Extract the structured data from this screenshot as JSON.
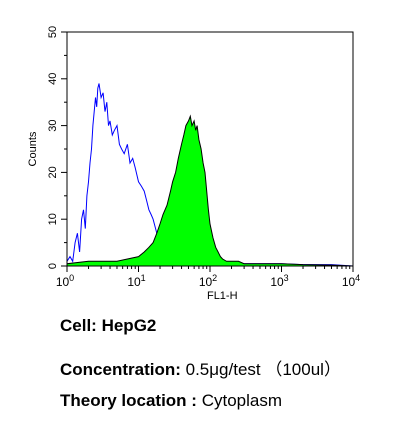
{
  "chart_data": {
    "type": "area",
    "xlabel": "FL1-H",
    "ylabel": "Counts",
    "xscale": "log",
    "xlim": [
      1,
      10000
    ],
    "ylim": [
      0,
      50
    ],
    "x_ticks": [
      {
        "value": 1,
        "base": "10",
        "exp": "0"
      },
      {
        "value": 10,
        "base": "10",
        "exp": "1"
      },
      {
        "value": 100,
        "base": "10",
        "exp": "2"
      },
      {
        "value": 1000,
        "base": "10",
        "exp": "3"
      },
      {
        "value": 10000,
        "base": "10",
        "exp": "4"
      }
    ],
    "y_ticks": [
      "0",
      "10",
      "20",
      "30",
      "40",
      "50"
    ],
    "colors": {
      "control": "#0000ff",
      "sample_fill": "#00ff00",
      "sample_line": "#000000"
    },
    "series": [
      {
        "role": "control",
        "style": "outline",
        "x": [
          1.0,
          1.1,
          1.2,
          1.3,
          1.4,
          1.5,
          1.6,
          1.7,
          1.8,
          1.9,
          2.0,
          2.1,
          2.2,
          2.3,
          2.4,
          2.5,
          2.6,
          2.7,
          2.8,
          3.0,
          3.2,
          3.4,
          3.6,
          3.8,
          4.0,
          4.3,
          4.6,
          5.0,
          5.4,
          5.8,
          6.3,
          7.0,
          7.6,
          8.3,
          9.0,
          10.0,
          11.0,
          12.0,
          13.0,
          14.0,
          15.0,
          16.0,
          18.0,
          20.0,
          23.0,
          26.0,
          30.0,
          40.0,
          60.0,
          100.0,
          200.0,
          500.0,
          1000.0,
          2000.0,
          5000.0,
          10000.0
        ],
        "y": [
          1,
          2,
          1,
          5,
          7,
          3,
          10,
          12,
          8,
          15,
          18,
          22,
          25,
          30,
          33,
          36,
          34,
          38,
          39,
          36,
          37,
          33,
          35,
          30,
          31,
          28,
          29,
          30,
          26,
          25,
          24,
          26,
          22,
          23,
          21,
          18,
          17,
          16,
          14,
          12,
          11,
          10,
          7,
          5,
          4,
          3,
          2,
          1,
          1,
          1,
          0.5,
          0.5,
          0.5,
          0.3,
          0.3,
          0
        ]
      },
      {
        "role": "sample",
        "style": "filled",
        "x": [
          1.0,
          2.0,
          3.0,
          5.0,
          7.0,
          10.0,
          12.0,
          14.0,
          16.0,
          18.0,
          20.0,
          22.0,
          25.0,
          28.0,
          30.0,
          33.0,
          36.0,
          40.0,
          43.0,
          46.0,
          50.0,
          53.0,
          56.0,
          60.0,
          63.0,
          66.0,
          70.0,
          75.0,
          80.0,
          85.0,
          90.0,
          95.0,
          100.0,
          110.0,
          120.0,
          130.0,
          140.0,
          150.0,
          170.0,
          200.0,
          250.0,
          300.0,
          500.0,
          1000.0,
          2000.0,
          5000.0,
          10000.0
        ],
        "y": [
          0.5,
          1,
          1,
          1,
          1.5,
          2,
          3,
          4,
          5,
          7,
          9,
          11,
          13,
          16,
          18,
          20,
          23,
          26,
          28,
          30,
          31,
          32,
          30,
          31,
          29,
          30,
          27,
          25,
          22,
          20,
          16,
          12,
          9,
          6,
          4,
          3,
          2,
          1.5,
          1,
          1,
          1,
          0.5,
          0.5,
          0.5,
          0.3,
          0.2,
          0
        ]
      }
    ]
  },
  "captions": {
    "cell_label": "Cell:",
    "cell_value": "HepG2",
    "concentration_label": "Concentration:",
    "concentration_value": "0.5μg/test （100ul）",
    "location_label": "Theory location :",
    "location_value": "Cytoplasm"
  }
}
